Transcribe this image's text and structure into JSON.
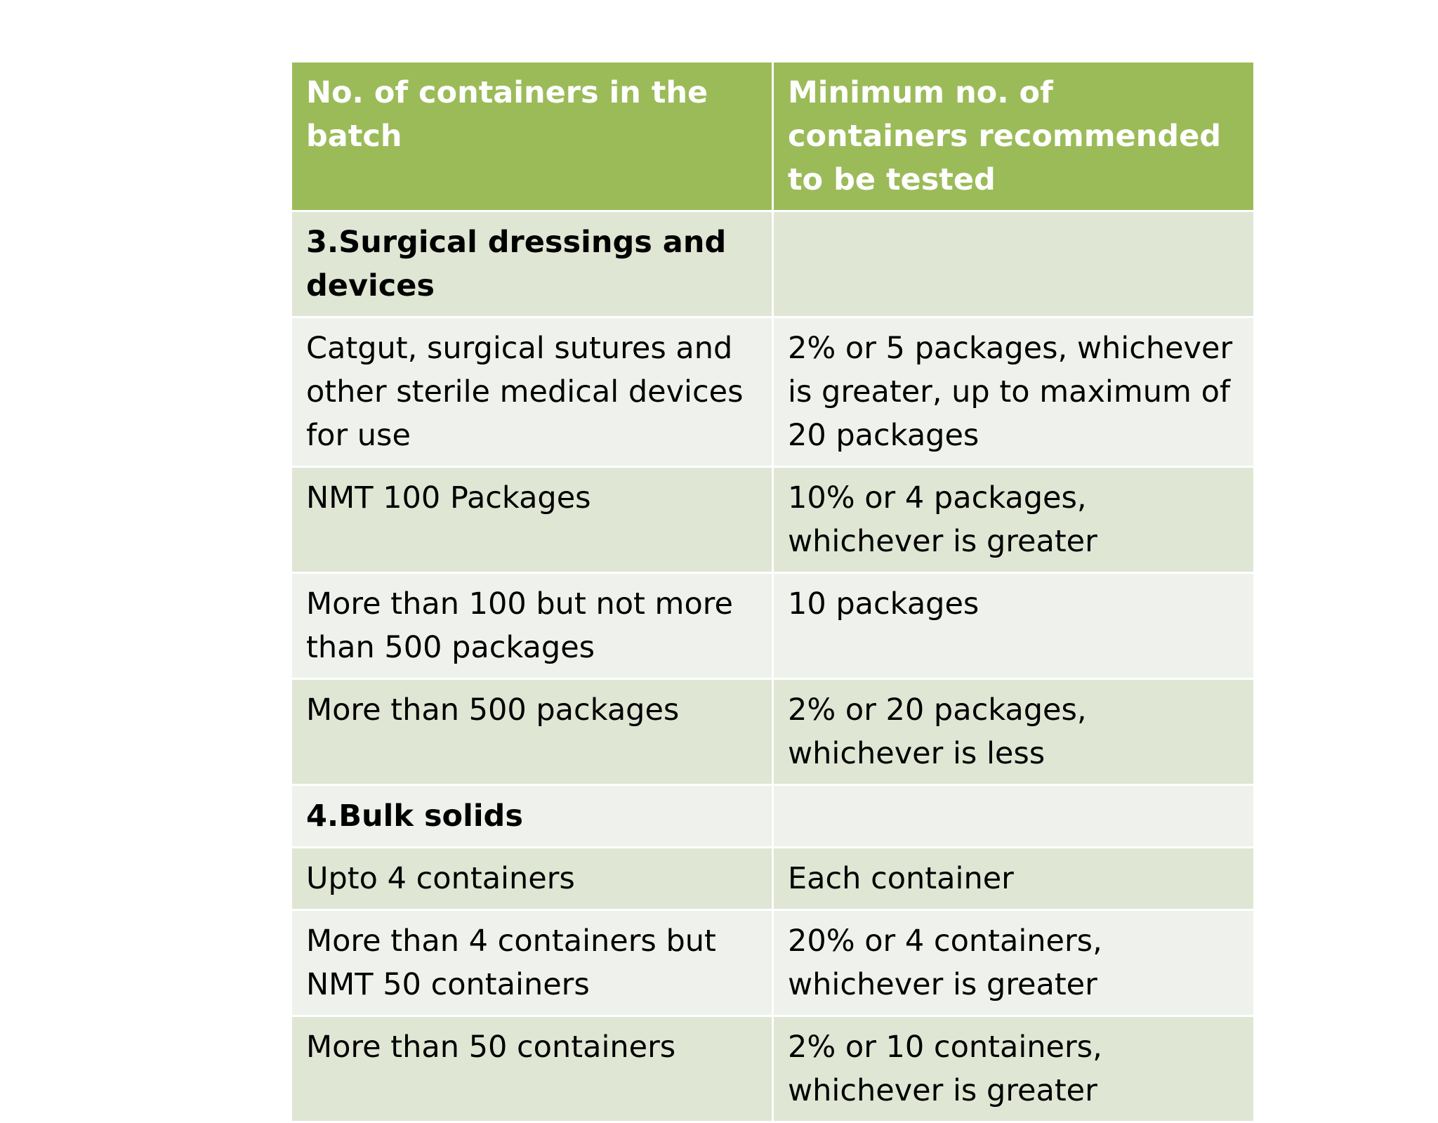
{
  "table": {
    "headers": [
      "No. of containers in the batch",
      "Minimum no. of containers recommended to be tested"
    ],
    "rows": [
      {
        "type": "section",
        "cells": [
          "3.Surgical dressings and devices",
          ""
        ]
      },
      {
        "type": "data",
        "cells": [
          "Catgut, surgical sutures and other sterile medical devices for use",
          "2% or 5 packages, whichever is greater, up to maximum of 20 packages"
        ]
      },
      {
        "type": "data",
        "cells": [
          "NMT 100 Packages",
          "10% or 4 packages, whichever is greater"
        ]
      },
      {
        "type": "data",
        "cells": [
          "More than 100 but not more than 500 packages",
          "10 packages"
        ]
      },
      {
        "type": "data",
        "cells": [
          "More than 500 packages",
          "2% or 20 packages, whichever is less"
        ]
      },
      {
        "type": "section",
        "cells": [
          "4.Bulk solids",
          ""
        ]
      },
      {
        "type": "data",
        "cells": [
          "Upto 4 containers",
          "Each container"
        ]
      },
      {
        "type": "data",
        "cells": [
          "More than 4 containers but NMT 50 containers",
          "20% or 4 containers, whichever is greater"
        ]
      },
      {
        "type": "data",
        "cells": [
          "More than 50 containers",
          "2% or 10 containers, whichever is greater"
        ]
      }
    ]
  },
  "colors": {
    "header_bg": "#9bbb59",
    "row_dark": "#e0e6d4",
    "row_light": "#eff2ec"
  }
}
